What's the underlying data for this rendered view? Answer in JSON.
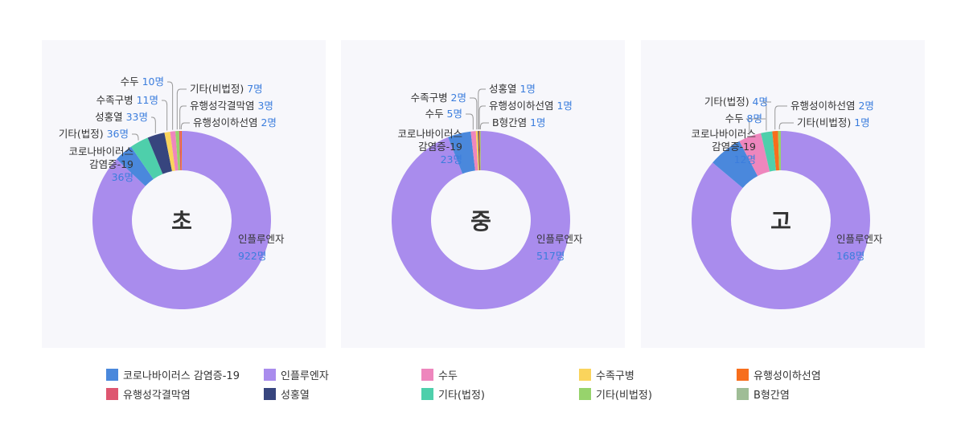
{
  "colors": {
    "코로나바이러스 감염증-19": "#4a88dc",
    "인플루엔자": "#a98ced",
    "수두": "#ee86bd",
    "수족구병": "#fad45c",
    "유행성이하선염": "#f76e1c",
    "유행성각결막염": "#de5670",
    "성홍열": "#37457e",
    "기타(법정)": "#4ecfab",
    "기타(비법정)": "#97d36c",
    "B형간염": "#9fbd96"
  },
  "legend": [
    "코로나바이러스 감염증-19",
    "인플루엔자",
    "수두",
    "수족구병",
    "유행성이하선염",
    "유행성각결막염",
    "성홍열",
    "기타(법정)",
    "기타(비법정)",
    "B형간염"
  ],
  "chart_data": [
    {
      "type": "pie",
      "title": "초",
      "slices": [
        {
          "name": "인플루엔자",
          "value": 922,
          "label": "인플루엔자",
          "value_label": "922명"
        },
        {
          "name": "코로나바이러스 감염증-19",
          "value": 36,
          "label": "코로나바이러스\n감염증-19",
          "value_label": "36명"
        },
        {
          "name": "기타(법정)",
          "value": 36,
          "label": "기타(법정)",
          "value_label": "36명"
        },
        {
          "name": "성홍열",
          "value": 33,
          "label": "성홍열",
          "value_label": "33명"
        },
        {
          "name": "수족구병",
          "value": 11,
          "label": "수족구병",
          "value_label": "11명"
        },
        {
          "name": "수두",
          "value": 10,
          "label": "수두",
          "value_label": "10명"
        },
        {
          "name": "기타(비법정)",
          "value": 7,
          "label": "기타(비법정)",
          "value_label": "7명"
        },
        {
          "name": "유행성각결막염",
          "value": 3,
          "label": "유행성각결막염",
          "value_label": "3명"
        },
        {
          "name": "유행성이하선염",
          "value": 2,
          "label": "유행성이하선염",
          "value_label": "2명"
        }
      ]
    },
    {
      "type": "pie",
      "title": "중",
      "slices": [
        {
          "name": "인플루엔자",
          "value": 517,
          "label": "인플루엔자",
          "value_label": "517명"
        },
        {
          "name": "코로나바이러스 감염증-19",
          "value": 23,
          "label": "코로나바이러스\n감염증-19",
          "value_label": "23명"
        },
        {
          "name": "수두",
          "value": 5,
          "label": "수두",
          "value_label": "5명"
        },
        {
          "name": "수족구병",
          "value": 2,
          "label": "수족구병",
          "value_label": "2명"
        },
        {
          "name": "성홍열",
          "value": 1,
          "label": "성홍열",
          "value_label": "1명"
        },
        {
          "name": "유행성이하선염",
          "value": 1,
          "label": "유행성이하선염",
          "value_label": "1명"
        },
        {
          "name": "B형간염",
          "value": 1,
          "label": "B형간염",
          "value_label": "1명"
        }
      ]
    },
    {
      "type": "pie",
      "title": "고",
      "slices": [
        {
          "name": "인플루엔자",
          "value": 168,
          "label": "인플루엔자",
          "value_label": "168명"
        },
        {
          "name": "코로나바이러스 감염증-19",
          "value": 12,
          "label": "코로나바이러스\n감염증-19",
          "value_label": "12명"
        },
        {
          "name": "수두",
          "value": 8,
          "label": "수두",
          "value_label": "8명"
        },
        {
          "name": "기타(법정)",
          "value": 4,
          "label": "기타(법정)",
          "value_label": "4명"
        },
        {
          "name": "유행성이하선염",
          "value": 2,
          "label": "유행성이하선염",
          "value_label": "2명"
        },
        {
          "name": "기타(비법정)",
          "value": 1,
          "label": "기타(비법정)",
          "value_label": "1명"
        }
      ]
    }
  ]
}
